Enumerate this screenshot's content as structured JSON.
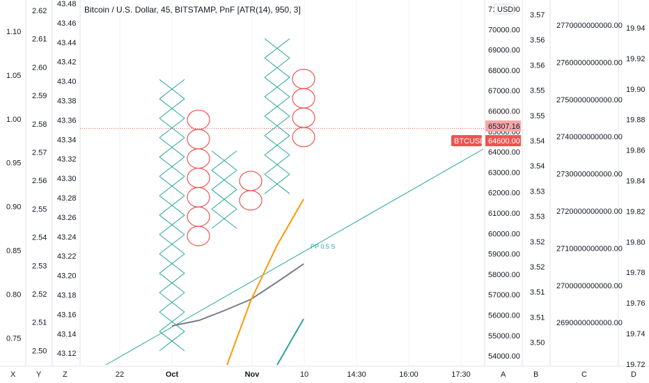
{
  "header": {
    "title": "Bitcoin / U.S. Dollar, 45, BITSTAMP, PnF [ATR(14), 950, 3]",
    "currency": "USD",
    "symbol_tag": "BTCUSD",
    "last_price_label": "64600.00",
    "crosshair_price_label": "65307.16"
  },
  "annotations": {
    "pivot_label": "PP 0.5 S"
  },
  "axes": {
    "x_letter": "X",
    "y_letter": "Y",
    "z_letter": "Z",
    "a_letter": "A",
    "b_letter": "B",
    "c_letter": "C",
    "d_letter": "D",
    "time_ticks": [
      "22",
      "Oct",
      "Nov",
      "10",
      "14:30",
      "16:00",
      "17:30"
    ],
    "x_ticks": [
      "1.10",
      "1.05",
      "1.00",
      "0.95",
      "0.90",
      "0.85",
      "0.80",
      "0.75"
    ],
    "y_ticks": [
      "2.62",
      "2.61",
      "2.60",
      "2.59",
      "2.58",
      "2.57",
      "2.56",
      "2.55",
      "2.54",
      "2.53",
      "2.52",
      "2.51",
      "2.50"
    ],
    "z_ticks": [
      "43.48",
      "43.46",
      "43.44",
      "43.42",
      "43.40",
      "43.38",
      "43.36",
      "43.34",
      "43.32",
      "43.30",
      "43.28",
      "43.26",
      "43.24",
      "43.22",
      "43.20",
      "43.18",
      "43.16",
      "43.14",
      "43.12"
    ],
    "a_ticks": [
      "71000.00",
      "70000.00",
      "69000.00",
      "68000.00",
      "67000.00",
      "66000.00",
      "65000.00",
      "64000.00",
      "63000.00",
      "62000.00",
      "61000.00",
      "60000.00",
      "59000.00",
      "58000.00",
      "57000.00",
      "56000.00",
      "55000.00",
      "54000.00"
    ],
    "b_ticks": [
      "3.57",
      "3.56",
      "3.56",
      "3.55",
      "3.55",
      "3.54",
      "3.54",
      "3.53",
      "3.53",
      "3.52",
      "3.52",
      "3.51",
      "3.51",
      "3.50"
    ],
    "c_ticks": [
      "2770000000000.00",
      "2760000000000.00",
      "2750000000000.00",
      "2740000000000.00",
      "2730000000000.00",
      "2720000000000.00",
      "2710000000000.00",
      "2700000000000.00",
      "2690000000000.00"
    ],
    "d_ticks": [
      "19.94",
      "19.92",
      "19.90",
      "19.88",
      "19.86",
      "19.84",
      "19.82",
      "19.80",
      "19.78",
      "19.76",
      "19.74",
      "19.72"
    ]
  },
  "colors": {
    "x_mark": "#26a69a",
    "o_mark": "#ef5350",
    "trend_line": "#26a69a",
    "gray_line": "#787b86",
    "orange_line": "#ff9800",
    "teal_line": "#26a69a",
    "price_tag": "#ef5350",
    "crosshair_tag": "#f7a7a9",
    "grid": "#f0f3fa"
  },
  "chart_data": {
    "type": "point-and-figure",
    "instrument": "BTCUSD",
    "box_size": 950,
    "reversal": 3,
    "columns": [
      {
        "kind": "X",
        "low": 53500,
        "high": 67000
      },
      {
        "kind": "O",
        "low": 59000,
        "high": 65500
      },
      {
        "kind": "X",
        "low": 59500,
        "high": 63500
      },
      {
        "kind": "O",
        "low": 60500,
        "high": 62500
      },
      {
        "kind": "X",
        "low": 61000,
        "high": 69000
      },
      {
        "kind": "O",
        "low": 64000,
        "high": 67500
      }
    ],
    "last_price": 64600,
    "a_axis_range": [
      53500,
      71000
    ]
  }
}
